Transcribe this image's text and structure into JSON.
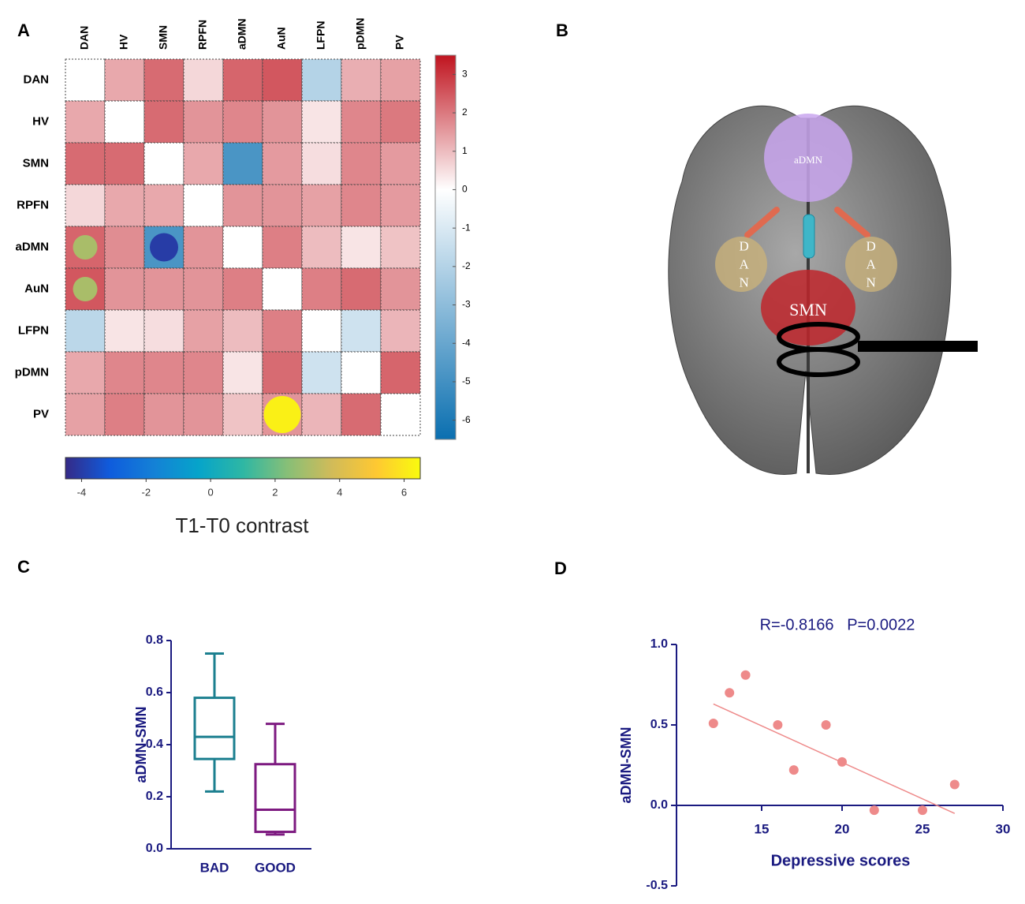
{
  "panels": [
    "A",
    "B",
    "C",
    "D"
  ],
  "brain_diagram": {
    "regions": [
      "aDMN",
      "DAN",
      "DAN",
      "SMN"
    ]
  },
  "chart_data": [
    {
      "type": "heatmap",
      "labels": [
        "DAN",
        "HV",
        "SMN",
        "RPFN",
        "aDMN",
        "AuN",
        "LFPN",
        "pDMN",
        "PV"
      ],
      "values": [
        [
          null,
          1.3,
          2.2,
          0.6,
          2.3,
          2.5,
          -2.0,
          1.2,
          1.4
        ],
        [
          1.3,
          null,
          2.2,
          1.6,
          1.8,
          1.6,
          0.4,
          1.8,
          2.0
        ],
        [
          2.2,
          2.2,
          null,
          1.3,
          -4.8,
          1.5,
          0.5,
          1.8,
          1.5
        ],
        [
          0.6,
          1.3,
          1.3,
          null,
          1.6,
          1.6,
          1.4,
          1.8,
          1.5
        ],
        [
          2.3,
          1.7,
          -4.8,
          1.6,
          null,
          1.9,
          1.0,
          0.4,
          0.9
        ],
        [
          2.5,
          1.6,
          1.6,
          1.6,
          1.9,
          null,
          1.9,
          2.2,
          1.6
        ],
        [
          -1.8,
          0.4,
          0.5,
          1.4,
          1.0,
          1.9,
          null,
          -1.3,
          1.1
        ],
        [
          1.3,
          1.8,
          1.8,
          1.8,
          0.4,
          2.2,
          -1.3,
          null,
          2.3
        ],
        [
          1.4,
          1.9,
          1.6,
          1.6,
          0.9,
          1.6,
          1.1,
          2.2,
          null
        ]
      ],
      "colormap": {
        "low": "#0a6fb0",
        "mid": "#ffffff",
        "high": "#c0141f"
      },
      "clim": [
        -6.5,
        3.5
      ],
      "cticks": [
        3,
        2,
        1,
        0,
        -1,
        -2,
        -3,
        -4,
        -5,
        -6
      ],
      "markers": [
        {
          "row": "aDMN",
          "col": "DAN",
          "value": 3
        },
        {
          "row": "AuN",
          "col": "DAN",
          "value": 3
        },
        {
          "row": "aDMN",
          "col": "SMN",
          "value": -4
        },
        {
          "row": "PV",
          "col": "AuN",
          "value": 6.2
        }
      ],
      "marker_colormap": [
        "#352a87",
        "#0f5cdd",
        "#1481d6",
        "#06a4ca",
        "#2eb7a4",
        "#87bf77",
        "#d1bb59",
        "#fec832",
        "#f9fb0e"
      ],
      "marker_clim": [
        -4.5,
        6.5
      ],
      "marker_cticks": [
        -4,
        -2,
        0,
        2,
        4,
        6
      ],
      "marker_title": "T1-T0 contrast"
    },
    {
      "type": "box",
      "ylabel": "aDMN-SMN",
      "categories": [
        "BAD",
        "GOOD"
      ],
      "colors": [
        "#1b7f8f",
        "#7d1a80"
      ],
      "boxes": [
        {
          "min": 0.22,
          "q1": 0.345,
          "median": 0.43,
          "q3": 0.58,
          "max": 0.75
        },
        {
          "min": 0.055,
          "q1": 0.065,
          "median": 0.15,
          "q3": 0.325,
          "max": 0.48
        }
      ],
      "ylim": [
        0,
        0.8
      ],
      "yticks": [
        {
          "value": 0,
          "label": "0.0"
        },
        0.2,
        0.4,
        0.6,
        0.8
      ]
    },
    {
      "type": "scatter",
      "annotation": "R=-0.8166   P=0.0022",
      "xlabel": "Depressive scores",
      "ylabel": "aDMN-SMN",
      "color": "#ee8a8a",
      "x": [
        12,
        13,
        14,
        16,
        17,
        19,
        20,
        22,
        25,
        27
      ],
      "values": [
        0.51,
        0.7,
        0.81,
        0.5,
        0.22,
        0.5,
        0.27,
        -0.03,
        -0.03,
        0.13
      ],
      "fit": {
        "x": [
          12,
          27
        ],
        "values": [
          0.63,
          -0.05
        ]
      },
      "xlim": [
        10,
        30
      ],
      "xticks": [
        15,
        20,
        25,
        30
      ],
      "ylim": [
        -0.5,
        1.0
      ],
      "yticks": [
        {
          "value": 1.0,
          "label": "1.0"
        },
        0.5,
        {
          "value": 0,
          "label": "0.0"
        },
        -0.5
      ]
    }
  ]
}
